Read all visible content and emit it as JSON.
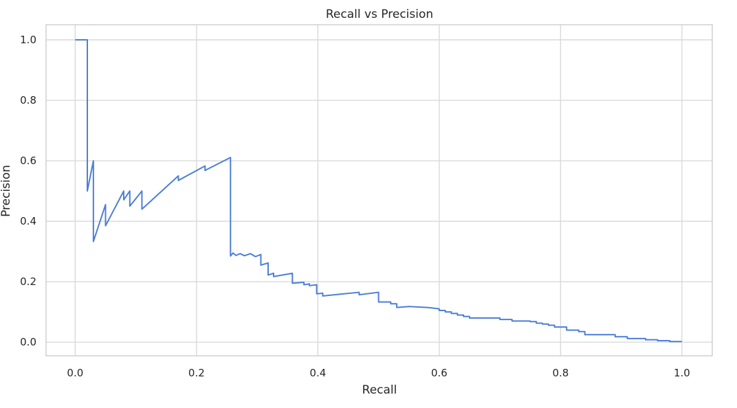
{
  "chart_data": {
    "type": "line",
    "title": "Recall vs Precision",
    "xlabel": "Recall",
    "ylabel": "Precision",
    "xlim": [
      -0.048,
      1.05
    ],
    "ylim": [
      -0.045,
      1.05
    ],
    "x_ticks": [
      0.0,
      0.2,
      0.4,
      0.6,
      0.8,
      1.0
    ],
    "x_tick_labels": [
      "0.0",
      "0.2",
      "0.4",
      "0.6",
      "0.8",
      "1.0"
    ],
    "y_ticks": [
      0.0,
      0.2,
      0.4,
      0.6,
      0.8,
      1.0
    ],
    "y_tick_labels": [
      "0.0",
      "0.2",
      "0.4",
      "0.6",
      "0.8",
      "1.0"
    ],
    "grid": true,
    "legend": "none",
    "series": [
      {
        "color": "#4c7fd6",
        "points": [
          [
            0.0,
            1.0
          ],
          [
            0.02,
            1.0
          ],
          [
            0.02,
            0.5
          ],
          [
            0.03,
            0.6
          ],
          [
            0.03,
            0.333
          ],
          [
            0.05,
            0.455
          ],
          [
            0.05,
            0.385
          ],
          [
            0.08,
            0.5
          ],
          [
            0.08,
            0.471
          ],
          [
            0.09,
            0.5
          ],
          [
            0.09,
            0.45
          ],
          [
            0.11,
            0.5
          ],
          [
            0.11,
            0.44
          ],
          [
            0.17,
            0.55
          ],
          [
            0.17,
            0.535
          ],
          [
            0.214,
            0.583
          ],
          [
            0.214,
            0.568
          ],
          [
            0.256,
            0.611
          ],
          [
            0.256,
            0.285
          ],
          [
            0.26,
            0.295
          ],
          [
            0.265,
            0.287
          ],
          [
            0.272,
            0.293
          ],
          [
            0.279,
            0.286
          ],
          [
            0.289,
            0.293
          ],
          [
            0.297,
            0.283
          ],
          [
            0.306,
            0.29
          ],
          [
            0.306,
            0.255
          ],
          [
            0.318,
            0.262
          ],
          [
            0.318,
            0.222
          ],
          [
            0.327,
            0.228
          ],
          [
            0.327,
            0.217
          ],
          [
            0.358,
            0.228
          ],
          [
            0.358,
            0.195
          ],
          [
            0.377,
            0.198
          ],
          [
            0.377,
            0.19
          ],
          [
            0.386,
            0.193
          ],
          [
            0.386,
            0.187
          ],
          [
            0.398,
            0.19
          ],
          [
            0.398,
            0.16
          ],
          [
            0.408,
            0.162
          ],
          [
            0.408,
            0.153
          ],
          [
            0.468,
            0.165
          ],
          [
            0.468,
            0.157
          ],
          [
            0.5,
            0.165
          ],
          [
            0.5,
            0.133
          ],
          [
            0.52,
            0.133
          ],
          [
            0.52,
            0.127
          ],
          [
            0.53,
            0.127
          ],
          [
            0.53,
            0.115
          ],
          [
            0.55,
            0.118
          ],
          [
            0.58,
            0.115
          ],
          [
            0.59,
            0.113
          ],
          [
            0.6,
            0.11
          ],
          [
            0.6,
            0.105
          ],
          [
            0.61,
            0.105
          ],
          [
            0.61,
            0.1
          ],
          [
            0.62,
            0.1
          ],
          [
            0.62,
            0.095
          ],
          [
            0.63,
            0.095
          ],
          [
            0.63,
            0.09
          ],
          [
            0.64,
            0.09
          ],
          [
            0.64,
            0.085
          ],
          [
            0.65,
            0.085
          ],
          [
            0.65,
            0.08
          ],
          [
            0.7,
            0.08
          ],
          [
            0.7,
            0.075
          ],
          [
            0.72,
            0.075
          ],
          [
            0.72,
            0.07
          ],
          [
            0.75,
            0.07
          ],
          [
            0.75,
            0.068
          ],
          [
            0.76,
            0.068
          ],
          [
            0.76,
            0.063
          ],
          [
            0.77,
            0.063
          ],
          [
            0.77,
            0.06
          ],
          [
            0.78,
            0.06
          ],
          [
            0.78,
            0.056
          ],
          [
            0.79,
            0.056
          ],
          [
            0.79,
            0.05
          ],
          [
            0.81,
            0.05
          ],
          [
            0.81,
            0.04
          ],
          [
            0.83,
            0.04
          ],
          [
            0.83,
            0.035
          ],
          [
            0.84,
            0.035
          ],
          [
            0.84,
            0.025
          ],
          [
            0.89,
            0.025
          ],
          [
            0.89,
            0.018
          ],
          [
            0.91,
            0.018
          ],
          [
            0.91,
            0.012
          ],
          [
            0.94,
            0.012
          ],
          [
            0.94,
            0.008
          ],
          [
            0.96,
            0.008
          ],
          [
            0.96,
            0.005
          ],
          [
            0.98,
            0.005
          ],
          [
            0.98,
            0.002
          ],
          [
            1.0,
            0.002
          ]
        ]
      }
    ]
  }
}
